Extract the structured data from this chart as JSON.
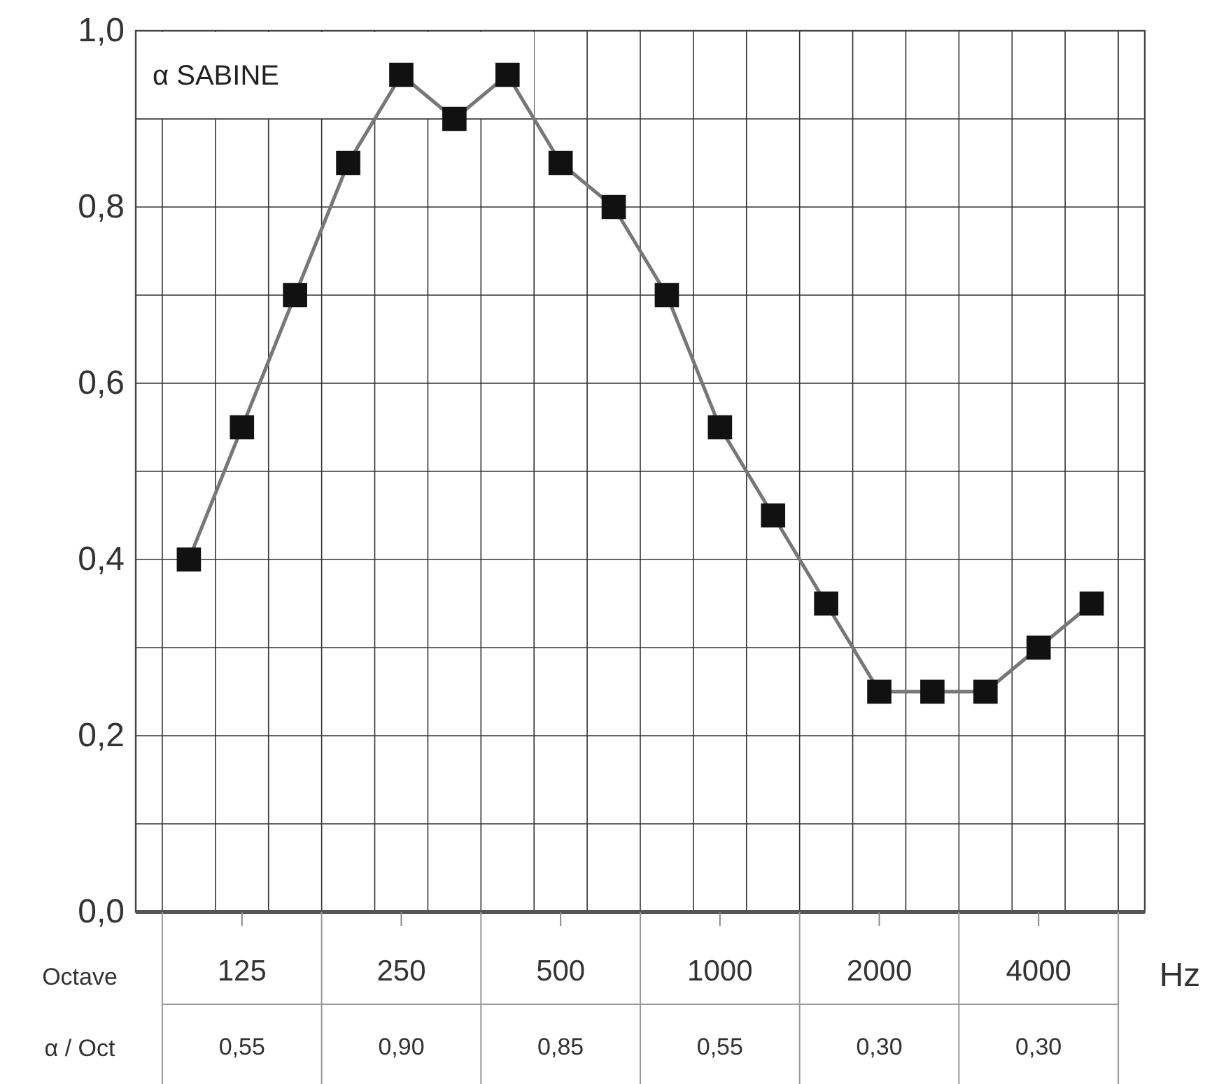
{
  "chart_data": {
    "type": "line",
    "title": "α SABINE",
    "xlabel": "Hz",
    "categories": [
      null,
      "125",
      null,
      null,
      "250",
      null,
      null,
      "500",
      null,
      null,
      "1000",
      null,
      null,
      "2000",
      null,
      null,
      "4000",
      null
    ],
    "series": [
      {
        "color": "#777777",
        "values": [
          0.4,
          0.55,
          0.7,
          0.85,
          0.95,
          0.9,
          0.95,
          0.85,
          0.8,
          0.7,
          0.55,
          0.45,
          0.35,
          0.25,
          0.25,
          0.25,
          0.3,
          0.35
        ]
      }
    ],
    "ylim": [
      0,
      1
    ],
    "yticks": [
      {
        "value": 0,
        "label": "0,0"
      },
      {
        "value": 0.1,
        "label": null
      },
      {
        "value": 0.2,
        "label": "0,2"
      },
      {
        "value": 0.3,
        "label": null
      },
      {
        "value": 0.4,
        "label": "0,4"
      },
      {
        "value": 0.5,
        "label": null
      },
      {
        "value": 0.6,
        "label": "0,6"
      },
      {
        "value": 0.7,
        "label": null
      },
      {
        "value": 0.8,
        "label": "0,8"
      },
      {
        "value": 0.9,
        "label": null
      },
      {
        "value": 1,
        "label": "1,0"
      }
    ],
    "grid": true,
    "marker": "square",
    "line_style": "solid",
    "annotations": [
      "Octave",
      "α / Oct",
      "0,55",
      "0,90",
      "0,85",
      "0,55",
      "0,30",
      "0,30"
    ]
  }
}
